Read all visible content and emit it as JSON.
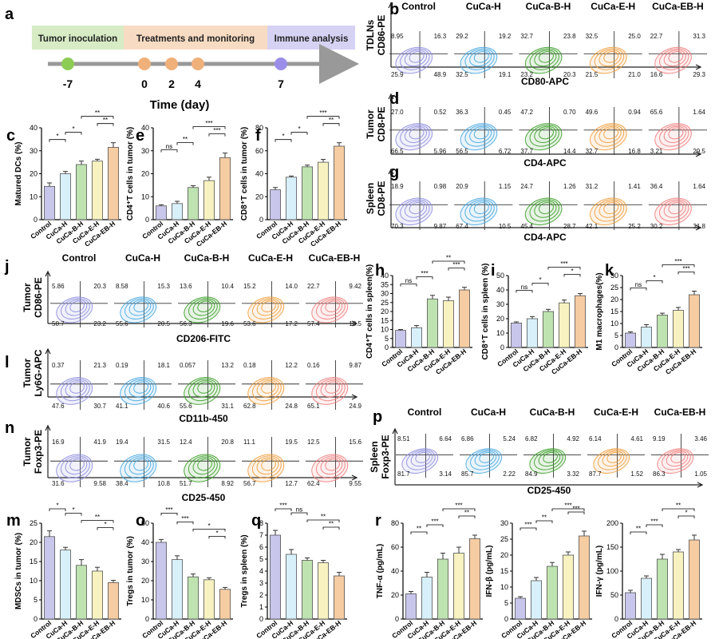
{
  "groups": [
    "Control",
    "CuCa-H",
    "CuCa-B-H",
    "CuCa-E-H",
    "CuCa-EB-H"
  ],
  "colors": [
    "#c9c6ec",
    "#d8f0fa",
    "#bfe3b0",
    "#f7f2c0",
    "#f6cca2"
  ],
  "flow_colors": [
    "#8f8fe0",
    "#4aa8e0",
    "#3da02a",
    "#f0a040",
    "#f08080"
  ],
  "timeline": {
    "panel": "a",
    "phases": [
      "Tumor inoculation",
      "Treatments and monitoring",
      "Immune analysis"
    ],
    "phase_colors": [
      "#d7ecc5",
      "#f7dcc3",
      "#d6d2f3"
    ],
    "points": [
      {
        "day": "-7",
        "color": "#8ccc55"
      },
      {
        "day": "0",
        "color": "#f0b07a"
      },
      {
        "day": "2",
        "color": "#f0b07a"
      },
      {
        "day": "4",
        "color": "#f0b07a"
      },
      {
        "day": "7",
        "color": "#9a8ee8"
      }
    ],
    "axis_label": "Time (day)"
  },
  "flow_panels": [
    {
      "id": "b",
      "row_label": "TDLNs",
      "y_axis": "CD86-PE",
      "x_axis": "CD80-APC",
      "group_labels": true,
      "quadrants": [
        [
          "8.95",
          "16.3",
          "25.9",
          "48.9"
        ],
        [
          "29.2",
          "19.2",
          "32.5",
          "19.1"
        ],
        [
          "32.7",
          "23.8",
          "23.2",
          "20.3"
        ],
        [
          "32.5",
          "25.0",
          "21.5",
          "21.0"
        ],
        [
          "22.7",
          "31.3",
          "16.6",
          "29.3"
        ]
      ]
    },
    {
      "id": "d",
      "row_label": "Tumor",
      "y_axis": "CD8-PE",
      "x_axis": "CD4-APC",
      "group_labels": false,
      "quadrants": [
        [
          "27.0",
          "0.52",
          "66.5",
          "5.96"
        ],
        [
          "36.3",
          "0.45",
          "56.5",
          "6.72"
        ],
        [
          "47.2",
          "0.70",
          "37.7",
          "14.4"
        ],
        [
          "49.6",
          "0.94",
          "32.7",
          "16.8"
        ],
        [
          "65.6",
          "1.64",
          "3.21",
          "29.5"
        ]
      ]
    },
    {
      "id": "g",
      "row_label": "Spleen",
      "y_axis": "CD8-PE",
      "x_axis": "CD4-APC",
      "group_labels": false,
      "quadrants": [
        [
          "18.9",
          "0.98",
          "70.3",
          "9.87"
        ],
        [
          "20.9",
          "1.15",
          "67.4",
          "10.5"
        ],
        [
          "24.7",
          "1.26",
          "45.4",
          "28.7"
        ],
        [
          "31.2",
          "1.41",
          "42.1",
          "25.2"
        ],
        [
          "36.4",
          "1.64",
          "30.2",
          "31.8"
        ]
      ]
    },
    {
      "id": "j",
      "row_label": "Tumor",
      "y_axis": "CD86-PE",
      "x_axis": "CD206-FITC",
      "group_labels": true,
      "quadrants": [
        [
          "5.86",
          "20.3",
          "50.7",
          "23.2"
        ],
        [
          "8.58",
          "15.3",
          "55.6",
          "20.5"
        ],
        [
          "13.6",
          "10.4",
          "56.3",
          "19.6"
        ],
        [
          "15.2",
          "14.0",
          "53.6",
          "17.2"
        ],
        [
          "22.7",
          "9.42",
          "57.4",
          "10.5"
        ]
      ]
    },
    {
      "id": "l",
      "row_label": "Tumor",
      "y_axis": "Ly6G-APC",
      "x_axis": "CD11b-450",
      "group_labels": false,
      "quadrants": [
        [
          "0.37",
          "21.3",
          "47.6",
          "30.7"
        ],
        [
          "0.19",
          "18.1",
          "41.1",
          "40.6"
        ],
        [
          "0.057",
          "13.2",
          "55.6",
          "31.1"
        ],
        [
          "0.18",
          "12.2",
          "62.8",
          "24.8"
        ],
        [
          "0.16",
          "9.87",
          "65.1",
          "24.9"
        ]
      ]
    },
    {
      "id": "n",
      "row_label": "Tumor",
      "y_axis": "Foxp3-PE",
      "x_axis": "CD25-450",
      "group_labels": false,
      "quadrants": [
        [
          "16.9",
          "41.9",
          "31.6",
          "9.58"
        ],
        [
          "19.4",
          "31.5",
          "38.4",
          "10.8"
        ],
        [
          "12.4",
          "20.8",
          "51.7",
          "8.92"
        ],
        [
          "11.1",
          "19.5",
          "56.7",
          "12.7"
        ],
        [
          "12.5",
          "15.6",
          "62.4",
          "9.55"
        ]
      ]
    },
    {
      "id": "p",
      "row_label": "Spleen",
      "y_axis": "Foxp3-PE",
      "x_axis": "CD25-450",
      "group_labels": true,
      "quadrants": [
        [
          "8.51",
          "6.64",
          "81.7",
          "3.14"
        ],
        [
          "6.86",
          "5.24",
          "85.7",
          "2.22"
        ],
        [
          "6.82",
          "4.92",
          "84.9",
          "3.32"
        ],
        [
          "6.14",
          "4.61",
          "87.7",
          "1.52"
        ],
        [
          "9.19",
          "3.46",
          "86.3",
          "1.05"
        ]
      ]
    }
  ],
  "chart_data": [
    {
      "panel": "c",
      "type": "bar",
      "categories": [
        "Control",
        "CuCa-H",
        "CuCa-B-H",
        "CuCa-E-H",
        "CuCa-EB-H"
      ],
      "values": [
        14.5,
        20,
        24,
        25.5,
        31.5
      ],
      "errors": [
        1.5,
        1,
        1.5,
        0.8,
        2
      ],
      "ylabel": "Matured DCs (%)",
      "ylim": [
        0,
        40
      ],
      "yticks": [
        "0",
        "10",
        "20",
        "30",
        "40"
      ],
      "significance": [
        {
          "a": 0,
          "b": 1,
          "label": "*",
          "level": 1
        },
        {
          "a": 1,
          "b": 2,
          "label": "*",
          "level": 2
        },
        {
          "a": 2,
          "b": 4,
          "label": "**",
          "level": 4
        },
        {
          "a": 3,
          "b": 4,
          "label": "**",
          "level": 3
        }
      ]
    },
    {
      "panel": "e",
      "type": "bar",
      "categories": [
        "Control",
        "CuCa-H",
        "CuCa-B-H",
        "CuCa-E-H",
        "CuCa-EB-H"
      ],
      "values": [
        6,
        7,
        14,
        17,
        27
      ],
      "errors": [
        0.5,
        1,
        0.8,
        1.5,
        2
      ],
      "ylabel": "CD4⁺T cells in tumor (%)",
      "ylim": [
        0,
        40
      ],
      "yticks": [
        "0",
        "10",
        "20",
        "30",
        "40"
      ],
      "significance": [
        {
          "a": 0,
          "b": 1,
          "label": "ns",
          "level": 1
        },
        {
          "a": 1,
          "b": 2,
          "label": "**",
          "level": 2
        },
        {
          "a": 2,
          "b": 4,
          "label": "***",
          "level": 4
        },
        {
          "a": 3,
          "b": 4,
          "label": "***",
          "level": 3
        }
      ]
    },
    {
      "panel": "f",
      "type": "bar",
      "categories": [
        "Control",
        "CuCa-H",
        "CuCa-B-H",
        "CuCa-E-H",
        "CuCa-EB-H"
      ],
      "values": [
        26,
        37,
        46,
        50,
        64
      ],
      "errors": [
        2,
        1,
        1.5,
        2.5,
        3
      ],
      "ylabel": "CD8⁺T cells in tumor (%)",
      "ylim": [
        0,
        80
      ],
      "yticks": [
        "0",
        "20",
        "40",
        "60",
        "80"
      ],
      "significance": [
        {
          "a": 0,
          "b": 1,
          "label": "*",
          "level": 1
        },
        {
          "a": 1,
          "b": 2,
          "label": "*",
          "level": 2
        },
        {
          "a": 2,
          "b": 4,
          "label": "***",
          "level": 4
        },
        {
          "a": 3,
          "b": 4,
          "label": "**",
          "level": 3
        }
      ]
    },
    {
      "panel": "h",
      "type": "bar",
      "categories": [
        "Control",
        "CuCa-H",
        "CuCa-B-H",
        "CuCa-E-H",
        "CuCa-EB-H"
      ],
      "values": [
        9.5,
        11,
        27,
        26,
        32
      ],
      "errors": [
        0.5,
        1.2,
        2,
        2,
        1.5
      ],
      "ylabel": "CD4⁺T cells in spleen(%)",
      "ylim": [
        0,
        40
      ],
      "yticks": [
        "0",
        "5",
        "10",
        "15",
        "20",
        "25",
        "30",
        "35",
        "40"
      ],
      "significance": [
        {
          "a": 0,
          "b": 1,
          "label": "ns",
          "level": 1
        },
        {
          "a": 1,
          "b": 2,
          "label": "***",
          "level": 2
        },
        {
          "a": 2,
          "b": 4,
          "label": "**",
          "level": 4
        },
        {
          "a": 3,
          "b": 4,
          "label": "***",
          "level": 3
        }
      ]
    },
    {
      "panel": "i",
      "type": "bar",
      "categories": [
        "Control",
        "CuCa-H",
        "CuCa-B-H",
        "CuCa-E-H",
        "CuCa-EB-H"
      ],
      "values": [
        17,
        20,
        25,
        31,
        36
      ],
      "errors": [
        0.8,
        1.5,
        1.5,
        2,
        1.5
      ],
      "ylabel": "CD8⁺T cells in spleen (%)",
      "ylim": [
        0,
        50
      ],
      "yticks": [
        "0",
        "10",
        "20",
        "30",
        "40",
        "50"
      ],
      "significance": [
        {
          "a": 0,
          "b": 1,
          "label": "ns",
          "level": 1
        },
        {
          "a": 1,
          "b": 2,
          "label": "*",
          "level": 2
        },
        {
          "a": 2,
          "b": 4,
          "label": "***",
          "level": 4
        },
        {
          "a": 3,
          "b": 4,
          "label": "*",
          "level": 3
        }
      ]
    },
    {
      "panel": "k",
      "type": "bar",
      "categories": [
        "Control",
        "CuCa-H",
        "CuCa-B-H",
        "CuCa-E-H",
        "CuCa-EB-H"
      ],
      "values": [
        6,
        8.5,
        13.5,
        15.5,
        22
      ],
      "errors": [
        0.5,
        1,
        0.8,
        1.2,
        1.5
      ],
      "ylabel": "M1 macrophages(%)",
      "ylim": [
        0,
        30
      ],
      "yticks": [
        "0",
        "5",
        "10",
        "15",
        "20",
        "25",
        "30"
      ],
      "significance": [
        {
          "a": 0,
          "b": 1,
          "label": "ns",
          "level": 1
        },
        {
          "a": 1,
          "b": 2,
          "label": "*",
          "level": 2
        },
        {
          "a": 2,
          "b": 4,
          "label": "***",
          "level": 4
        },
        {
          "a": 3,
          "b": 4,
          "label": "***",
          "level": 3
        }
      ]
    },
    {
      "panel": "m",
      "type": "bar",
      "categories": [
        "Control",
        "CuCa-H",
        "CuCa-B-H",
        "CuCa-E-H",
        "CuCa-EB-H"
      ],
      "values": [
        21.5,
        18,
        14,
        12.5,
        9.5
      ],
      "errors": [
        1.5,
        0.7,
        1.5,
        1,
        0.6
      ],
      "ylabel": "MDSCs in tumor (%)",
      "ylim": [
        0,
        25
      ],
      "yticks": [
        "0",
        "5",
        "10",
        "15",
        "20",
        "25"
      ],
      "significance": [
        {
          "a": 0,
          "b": 1,
          "label": "*",
          "level": 4
        },
        {
          "a": 1,
          "b": 2,
          "label": "*",
          "level": 3
        },
        {
          "a": 2,
          "b": 4,
          "label": "**",
          "level": 2
        },
        {
          "a": 3,
          "b": 4,
          "label": "*",
          "level": 1
        }
      ]
    },
    {
      "panel": "o",
      "type": "bar",
      "categories": [
        "Control",
        "CuCa-H",
        "CuCa-B-H",
        "CuCa-E-H",
        "CuCa-EB-H"
      ],
      "values": [
        40,
        31,
        22,
        20.5,
        15.5
      ],
      "errors": [
        1.5,
        2,
        1.5,
        1,
        1
      ],
      "ylabel": "Tregs in tumor (%)",
      "ylim": [
        0,
        50
      ],
      "yticks": [
        "0",
        "10",
        "20",
        "30",
        "40",
        "50"
      ],
      "significance": [
        {
          "a": 0,
          "b": 1,
          "label": "***",
          "level": 4
        },
        {
          "a": 1,
          "b": 2,
          "label": "***",
          "level": 3
        },
        {
          "a": 2,
          "b": 4,
          "label": "*",
          "level": 2
        },
        {
          "a": 3,
          "b": 4,
          "label": "*",
          "level": 1
        }
      ]
    },
    {
      "panel": "q",
      "type": "bar",
      "categories": [
        "Control",
        "CuCa-H",
        "CuCa-B-H",
        "CuCa-E-H",
        "CuCa-EB-H"
      ],
      "values": [
        7,
        5.4,
        4.9,
        4.7,
        3.6
      ],
      "errors": [
        0.4,
        0.4,
        0.2,
        0.2,
        0.3
      ],
      "ylabel": "Tregs in spleen (%)",
      "ylim": [
        0,
        8
      ],
      "yticks": [
        "0",
        "1",
        "2",
        "3",
        "4",
        "5",
        "6",
        "7",
        "8"
      ],
      "significance": [
        {
          "a": 0,
          "b": 1,
          "label": "***",
          "level": 4
        },
        {
          "a": 1,
          "b": 2,
          "label": "ns",
          "level": 3
        },
        {
          "a": 2,
          "b": 4,
          "label": "**",
          "level": 2
        },
        {
          "a": 3,
          "b": 4,
          "label": "**",
          "level": 1
        }
      ]
    },
    {
      "panel": "r",
      "type": "bar",
      "categories": [
        "Control",
        "CuCa-H",
        "CuCa-B-H",
        "CuCa-E-H",
        "CuCa-EB-H"
      ],
      "values": [
        21,
        35,
        50,
        55,
        67
      ],
      "errors": [
        2,
        4,
        5,
        5,
        3
      ],
      "ylabel": "TNF-α (pg/mL)",
      "ylim": [
        0,
        80
      ],
      "yticks": [
        "0",
        "20",
        "40",
        "60",
        "80"
      ],
      "significance": [
        {
          "a": 0,
          "b": 1,
          "label": "**",
          "level": 1
        },
        {
          "a": 1,
          "b": 2,
          "label": "***",
          "level": 2
        },
        {
          "a": 2,
          "b": 4,
          "label": "***",
          "level": 4
        },
        {
          "a": 3,
          "b": 4,
          "label": "**",
          "level": 3
        }
      ]
    },
    {
      "panel": "r2",
      "type": "bar",
      "categories": [
        "Control",
        "CuCa-H",
        "CuCa-B-H",
        "CuCa-E-H",
        "CuCa-EB-H"
      ],
      "values": [
        6.5,
        12,
        16.5,
        20,
        26
      ],
      "errors": [
        0.5,
        1,
        1.2,
        1,
        1.5
      ],
      "ylabel": "IFN-β (pg/mL)",
      "ylim": [
        0,
        30
      ],
      "yticks": [
        "0",
        "5",
        "10",
        "15",
        "20",
        "25",
        "30"
      ],
      "significance": [
        {
          "a": 0,
          "b": 1,
          "label": "***",
          "level": 1
        },
        {
          "a": 1,
          "b": 2,
          "label": "**",
          "level": 2
        },
        {
          "a": 2,
          "b": 4,
          "label": "***",
          "level": 4
        },
        {
          "a": 3,
          "b": 4,
          "label": "***",
          "level": 3
        }
      ]
    },
    {
      "panel": "r3",
      "type": "bar",
      "categories": [
        "Control",
        "CuCa-H",
        "CuCa-B-H",
        "CuCa-E-H",
        "CuCa-EB-H"
      ],
      "values": [
        55,
        85,
        125,
        140,
        165
      ],
      "errors": [
        5,
        5,
        10,
        5,
        10
      ],
      "ylabel": "IFN-γ (pg/mL)",
      "ylim": [
        0,
        200
      ],
      "yticks": [
        "0",
        "50",
        "100",
        "150",
        "200"
      ],
      "significance": [
        {
          "a": 0,
          "b": 1,
          "label": "**",
          "level": 1
        },
        {
          "a": 1,
          "b": 2,
          "label": "***",
          "level": 2
        },
        {
          "a": 2,
          "b": 4,
          "label": "**",
          "level": 4
        },
        {
          "a": 3,
          "b": 4,
          "label": "*",
          "level": 3
        }
      ]
    }
  ]
}
